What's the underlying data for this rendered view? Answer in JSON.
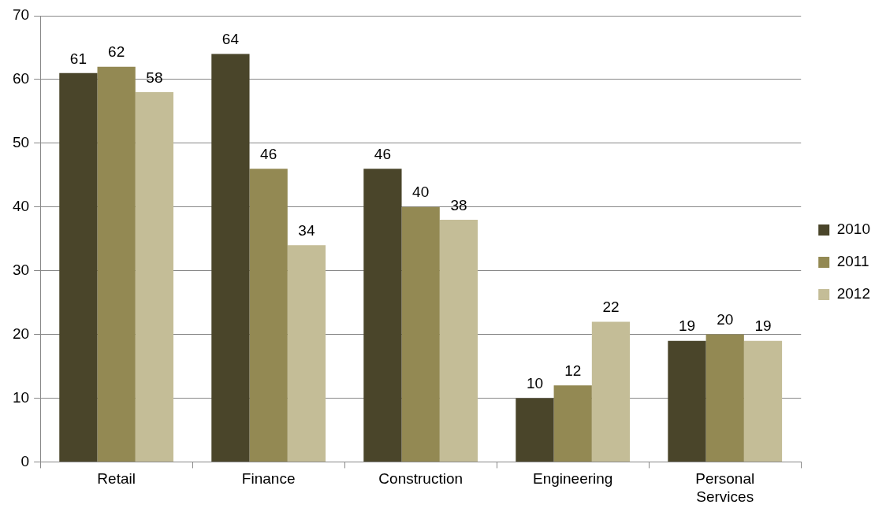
{
  "chart_data": {
    "type": "bar",
    "categories": [
      "Retail",
      "Finance",
      "Construction",
      "Engineering",
      "Personal Services"
    ],
    "series": [
      {
        "name": "2010",
        "color": "#4a452a",
        "values": [
          61,
          64,
          46,
          10,
          19
        ]
      },
      {
        "name": "2011",
        "color": "#938953",
        "values": [
          62,
          46,
          40,
          12,
          20
        ]
      },
      {
        "name": "2012",
        "color": "#c4bd97",
        "values": [
          58,
          34,
          38,
          22,
          19
        ]
      }
    ],
    "ylim": [
      0,
      70
    ],
    "yticks": [
      0,
      10,
      20,
      30,
      40,
      50,
      60,
      70
    ],
    "grid": "y",
    "legend": "right",
    "data_labels": true
  }
}
